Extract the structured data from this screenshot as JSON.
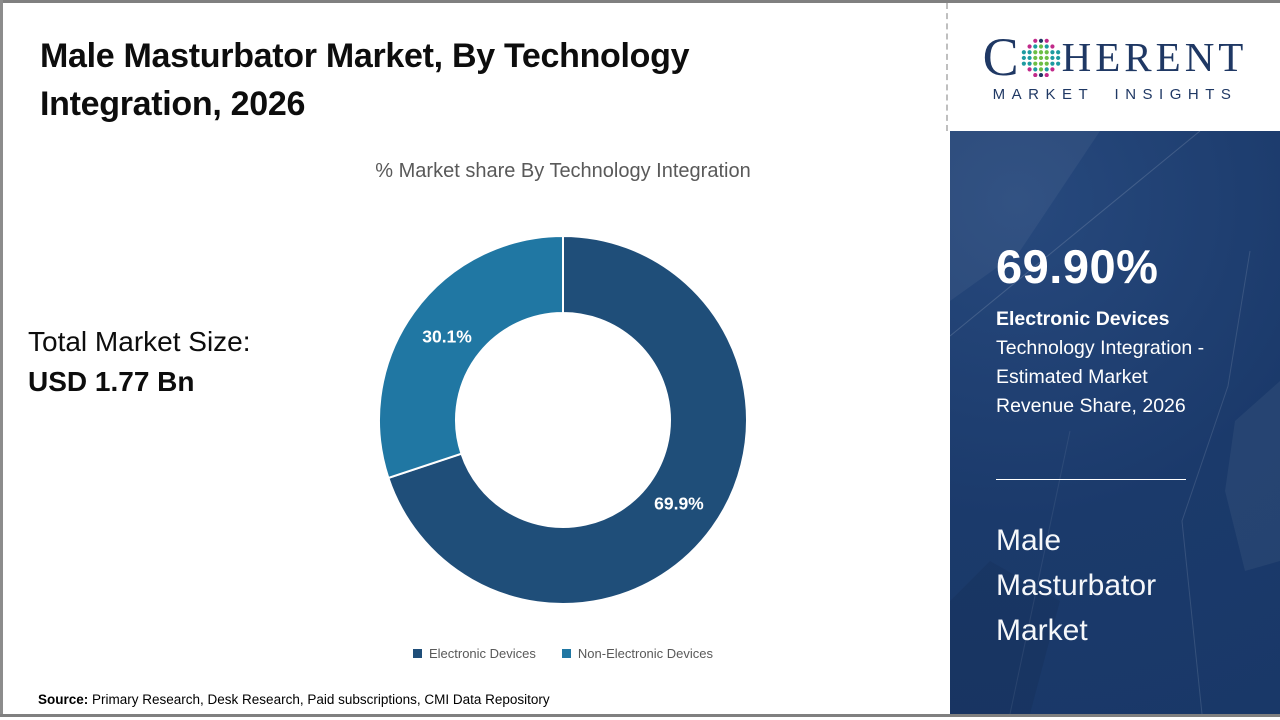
{
  "header": {
    "title": "Male Masturbator Market, By Technology Integration, 2026"
  },
  "chart_data": {
    "type": "pie",
    "donut": true,
    "title": "% Market share By Technology Integration",
    "categories": [
      "Electronic Devices",
      "Non-Electronic Devices"
    ],
    "values": [
      69.9,
      30.1
    ],
    "colors": [
      "#1F4E79",
      "#2077A3"
    ],
    "start_angle_deg": 0,
    "direction": "clockwise",
    "legend_position": "bottom",
    "label_format": "percent"
  },
  "total_market": {
    "label": "Total Market Size:",
    "value": "USD 1.77 Bn"
  },
  "source": {
    "label": "Source:",
    "text": " Primary Research, Desk Research, Paid subscriptions, CMI Data Repository"
  },
  "logo": {
    "letter_c": "C",
    "herent": "HERENT",
    "tagline": "MARKET INSIGHTS"
  },
  "sidebar": {
    "stat_value": "69.90%",
    "stat_category": "Electronic Devices",
    "stat_description": "Technology Integration - Estimated Market Revenue Share, 2026",
    "market_name": "Male Masturbator Market",
    "panel_color": "#1B3A6B"
  }
}
